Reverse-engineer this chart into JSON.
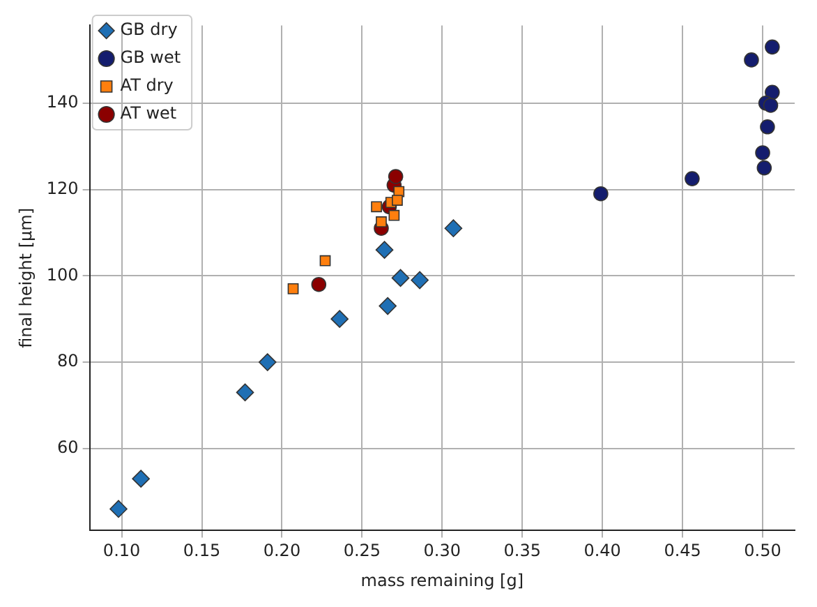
{
  "chart_data": {
    "type": "scatter",
    "xlabel": "mass remaining [g]",
    "ylabel": "final height [μm]",
    "xlim": [
      0.08,
      0.52
    ],
    "ylim": [
      41,
      158
    ],
    "xticks": [
      {
        "value": 0.1,
        "label": "0.10"
      },
      {
        "value": 0.15,
        "label": "0.15"
      },
      {
        "value": 0.2,
        "label": "0.20"
      },
      {
        "value": 0.25,
        "label": "0.25"
      },
      {
        "value": 0.3,
        "label": "0.30"
      },
      {
        "value": 0.35,
        "label": "0.35"
      },
      {
        "value": 0.4,
        "label": "0.40"
      },
      {
        "value": 0.45,
        "label": "0.45"
      },
      {
        "value": 0.5,
        "label": "0.50"
      }
    ],
    "yticks": [
      60,
      80,
      100,
      120,
      140
    ],
    "grid": true,
    "legend": "top left",
    "series": [
      {
        "name": "GB dry",
        "color": "#1f6fb4",
        "marker": "diamond",
        "x": [
          0.098,
          0.112,
          0.177,
          0.191,
          0.236,
          0.264,
          0.266,
          0.274,
          0.286,
          0.307
        ],
        "values": [
          46,
          53,
          73,
          80,
          90,
          106,
          93,
          99.5,
          99,
          111
        ]
      },
      {
        "name": "GB wet",
        "color": "#141d6e",
        "marker": "circle",
        "x": [
          0.399,
          0.456,
          0.493,
          0.506,
          0.506,
          0.502,
          0.505,
          0.503,
          0.5,
          0.501
        ],
        "values": [
          119,
          122.5,
          150,
          153,
          142.5,
          140,
          139.5,
          134.5,
          128.5,
          125
        ]
      },
      {
        "name": "AT dry",
        "color": "#ff7f0e",
        "marker": "square",
        "x": [
          0.207,
          0.227,
          0.259,
          0.262,
          0.268,
          0.27,
          0.273,
          0.272
        ],
        "values": [
          97,
          103.5,
          116,
          112.5,
          117,
          114,
          119.5,
          117.5
        ]
      },
      {
        "name": "AT wet",
        "color": "#8b0000",
        "x": [
          0.223,
          0.262,
          0.267,
          0.27,
          0.271
        ],
        "values": [
          98,
          111,
          116,
          121,
          123
        ]
      }
    ]
  }
}
